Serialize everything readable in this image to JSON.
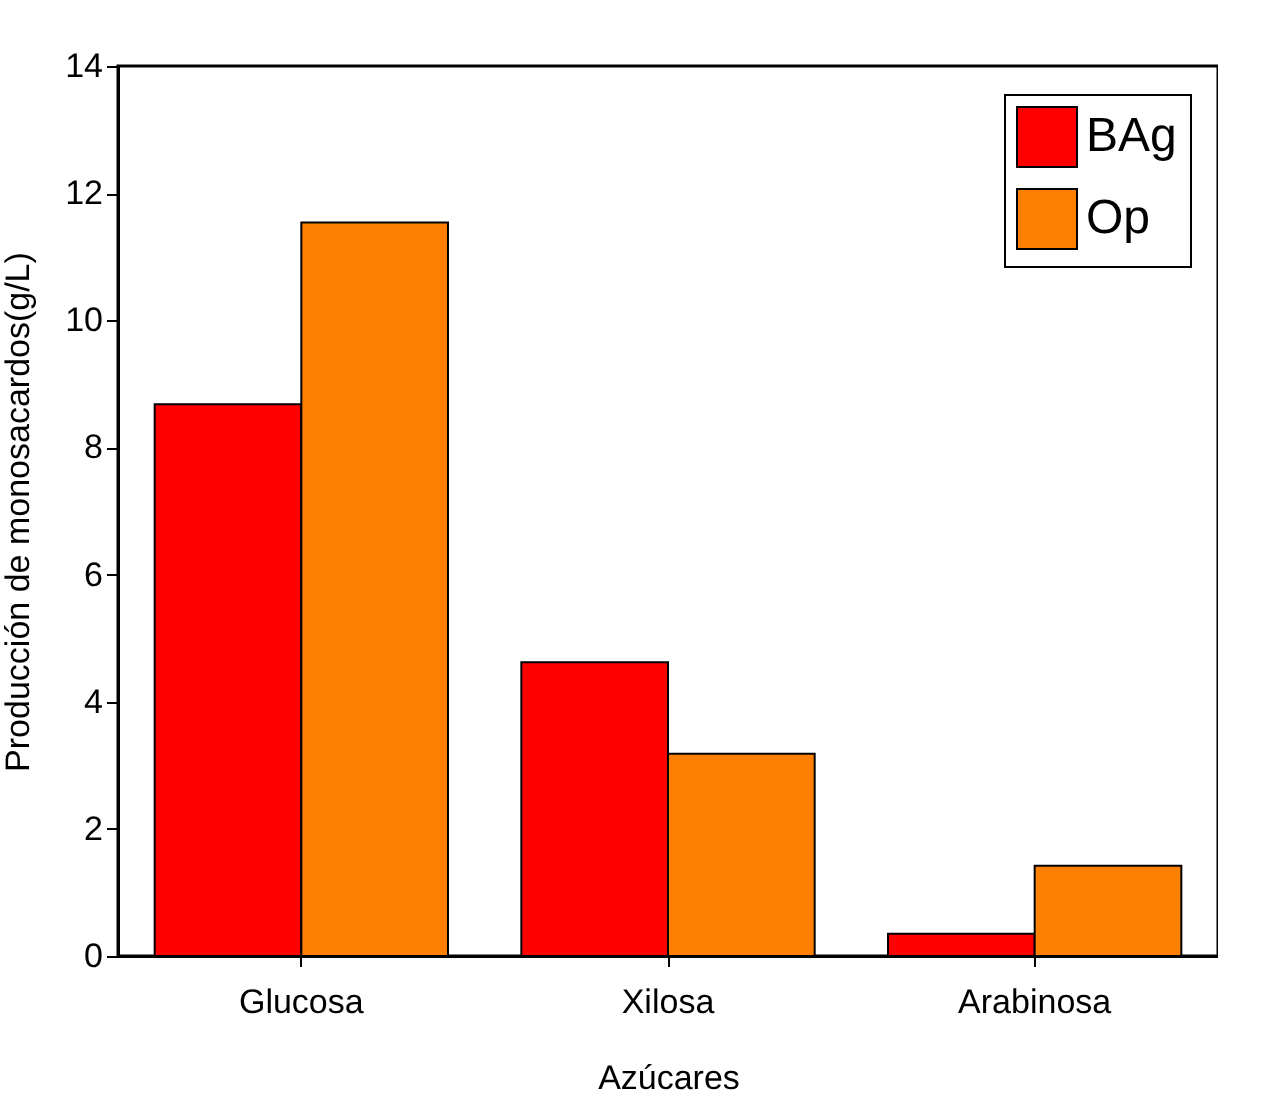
{
  "chart_data": {
    "type": "bar",
    "xlabel": "Azúcares",
    "ylabel": "Producción de monosacardos(g/L)",
    "categories": [
      "Glucosa",
      "Xilosa",
      "Arabinosa"
    ],
    "series": [
      {
        "name": "BAg",
        "color": "#ff0000",
        "values": [
          8.68,
          4.62,
          0.35
        ]
      },
      {
        "name": "Op",
        "color": "#ff8000",
        "values": [
          11.54,
          3.18,
          1.42
        ]
      }
    ],
    "ylim": [
      0,
      14
    ],
    "yticks": [
      0,
      2,
      4,
      6,
      8,
      10,
      12,
      14
    ],
    "grid": false,
    "legend": "top right"
  }
}
